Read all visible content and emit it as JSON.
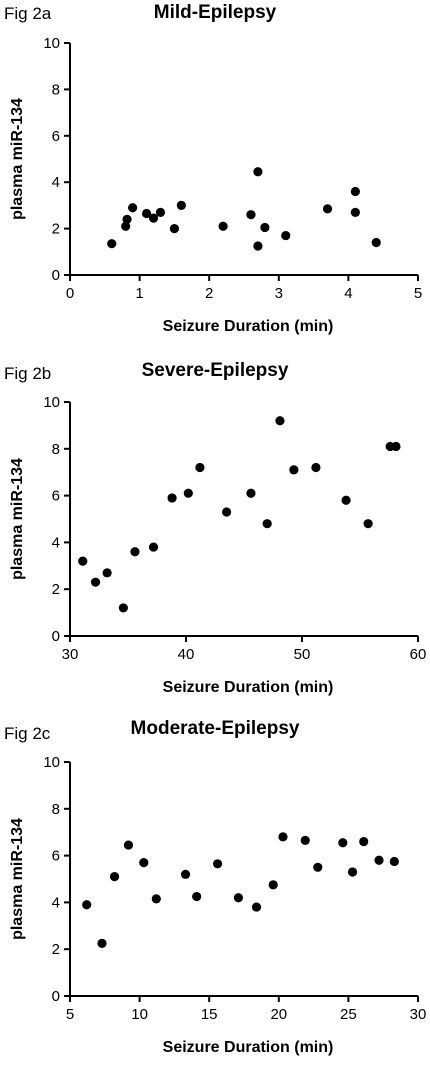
{
  "chart_data": [
    {
      "type": "scatter",
      "fig_label": "Fig 2a",
      "title": "Mild-Epilepsy",
      "xlabel": "Seizure Duration   (min)",
      "ylabel": "plasma miR-134",
      "xlim": [
        0,
        5
      ],
      "ylim": [
        0,
        10
      ],
      "xticks": [
        0,
        1,
        2,
        3,
        4,
        5
      ],
      "yticks": [
        0,
        2,
        4,
        6,
        8,
        10
      ],
      "x": [
        0.6,
        0.8,
        0.82,
        0.9,
        1.1,
        1.2,
        1.3,
        1.5,
        1.6,
        2.2,
        2.6,
        2.7,
        2.7,
        2.8,
        3.1,
        3.7,
        4.1,
        4.1,
        4.4
      ],
      "y": [
        1.35,
        2.1,
        2.4,
        2.9,
        2.65,
        2.45,
        2.7,
        2.0,
        3.0,
        2.1,
        2.6,
        4.45,
        1.25,
        2.05,
        1.7,
        2.85,
        3.6,
        2.7,
        1.4
      ]
    },
    {
      "type": "scatter",
      "fig_label": "Fig 2b",
      "title": "Severe-Epilepsy",
      "xlabel": "Seizure Duration   (min)",
      "ylabel": "plasma miR-134",
      "xlim": [
        30,
        60
      ],
      "ylim": [
        0,
        10
      ],
      "xticks": [
        30,
        40,
        50,
        60
      ],
      "yticks": [
        0,
        2,
        4,
        6,
        8,
        10
      ],
      "x": [
        31.1,
        32.2,
        33.2,
        34.6,
        35.6,
        37.2,
        38.8,
        40.2,
        41.2,
        43.5,
        45.6,
        47.0,
        48.1,
        49.3,
        51.2,
        53.8,
        55.7,
        57.6,
        58.1
      ],
      "y": [
        3.2,
        2.3,
        2.7,
        1.2,
        3.6,
        3.8,
        5.9,
        6.1,
        7.2,
        5.3,
        6.1,
        4.8,
        9.2,
        7.1,
        7.2,
        5.8,
        4.8,
        8.1,
        8.1
      ]
    },
    {
      "type": "scatter",
      "fig_label": "Fig 2c",
      "title": "Moderate-Epilepsy",
      "xlabel": "Seizure Duration   (min)",
      "ylabel": "plasma miR-134",
      "xlim": [
        5,
        30
      ],
      "ylim": [
        0,
        10
      ],
      "xticks": [
        5,
        10,
        15,
        20,
        25,
        30
      ],
      "yticks": [
        0,
        2,
        4,
        6,
        8,
        10
      ],
      "x": [
        6.2,
        7.3,
        8.2,
        9.2,
        10.3,
        11.2,
        13.3,
        14.1,
        15.6,
        17.1,
        18.4,
        19.6,
        20.3,
        21.9,
        22.8,
        24.6,
        25.3,
        26.1,
        27.2,
        28.3
      ],
      "y": [
        3.9,
        2.25,
        5.1,
        6.45,
        5.7,
        4.15,
        5.2,
        4.25,
        5.65,
        4.2,
        3.8,
        4.75,
        6.8,
        6.65,
        5.5,
        6.55,
        5.3,
        6.6,
        5.8,
        5.75
      ]
    }
  ]
}
